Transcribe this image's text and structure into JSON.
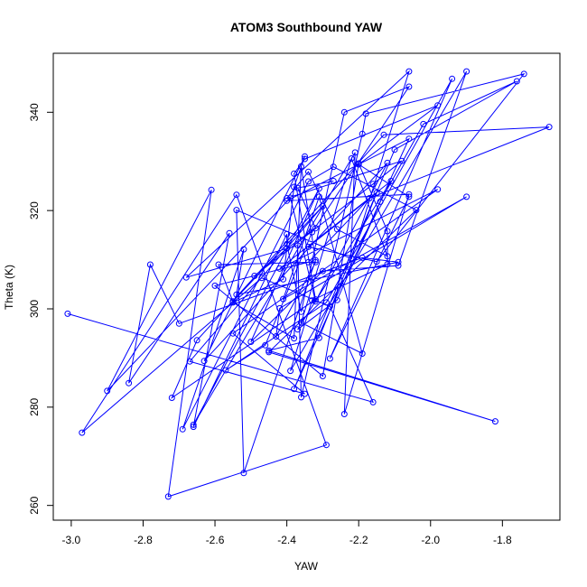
{
  "chart_data": {
    "type": "scatter",
    "title": "ATOM3 Southbound YAW",
    "xlabel": "YAW",
    "ylabel": "Theta (K)",
    "xlim": [
      -3.05,
      -1.64
    ],
    "ylim": [
      257,
      352
    ],
    "xticks": [
      -3.0,
      -2.8,
      -2.6,
      -2.4,
      -2.2,
      -2.0,
      -1.8
    ],
    "xtick_labels": [
      "-3.0",
      "-2.8",
      "-2.6",
      "-2.4",
      "-2.2",
      "-2.0",
      "-1.8"
    ],
    "yticks": [
      260,
      280,
      300,
      320,
      340
    ],
    "ytick_labels": [
      "260",
      "280",
      "300",
      "320",
      "340"
    ],
    "grid": false,
    "connected": true,
    "marker": "open-circle",
    "color": "#0000ff",
    "series": [
      {
        "points": [
          [
            -3.01,
            299.0
          ],
          [
            -2.16,
            281.0
          ],
          [
            -2.28,
            300.5
          ],
          [
            -2.47,
            306.3
          ],
          [
            -2.97,
            274.8
          ],
          [
            -2.54,
            323.2
          ],
          [
            -2.29,
            272.3
          ],
          [
            -2.73,
            261.8
          ],
          [
            -2.61,
            324.2
          ],
          [
            -2.9,
            283.3
          ],
          [
            -2.39,
            322.6
          ],
          [
            -2.32,
            301.5
          ],
          [
            -2.12,
            329.7
          ],
          [
            -2.63,
            289.4
          ],
          [
            -2.35,
            331.0
          ],
          [
            -2.38,
            324.8
          ],
          [
            -2.41,
            306.0
          ],
          [
            -2.55,
            301.3
          ],
          [
            -2.38,
            294.0
          ],
          [
            -2.36,
            329.0
          ],
          [
            -2.32,
            309.9
          ],
          [
            -2.52,
            266.6
          ],
          [
            -2.54,
            320.1
          ],
          [
            -2.22,
            310.2
          ],
          [
            -2.06,
            348.3
          ],
          [
            -2.68,
            306.4
          ],
          [
            -2.37,
            312.9
          ],
          [
            -2.36,
            282.0
          ],
          [
            -2.19,
            335.6
          ],
          [
            -2.18,
            339.7
          ],
          [
            -1.74,
            347.8
          ],
          [
            -2.15,
            309.6
          ],
          [
            -2.34,
            312.6
          ],
          [
            -2.15,
            323.6
          ],
          [
            -2.31,
            294.1
          ],
          [
            -2.45,
            291.5
          ],
          [
            -1.82,
            277.1
          ],
          [
            -2.45,
            291.2
          ],
          [
            -2.04,
            320.1
          ],
          [
            -2.27,
            328.9
          ],
          [
            -2.34,
            325.9
          ],
          [
            -2.69,
            275.5
          ],
          [
            -2.52,
            312.1
          ],
          [
            -2.54,
            302.9
          ],
          [
            -2.09,
            309.5
          ],
          [
            -2.19,
            310.4
          ],
          [
            -2.7,
            297.0
          ],
          [
            -2.78,
            309.0
          ],
          [
            -2.84,
            284.9
          ],
          [
            -2.56,
            315.4
          ],
          [
            -2.66,
            276.0
          ],
          [
            -2.4,
            315.2
          ],
          [
            -2.4,
            313.2
          ],
          [
            -2.36,
            299.4
          ],
          [
            -2.24,
            340.0
          ],
          [
            -2.06,
            345.2
          ],
          [
            -2.33,
            315.6
          ],
          [
            -2.46,
            292.6
          ],
          [
            -2.57,
            287.5
          ],
          [
            -2.29,
            301.3
          ],
          [
            -1.94,
            346.8
          ],
          [
            -2.28,
            289.9
          ],
          [
            -2.06,
            322.8
          ],
          [
            -2.2,
            329.4
          ],
          [
            -1.98,
            341.4
          ],
          [
            -2.35,
            330.5
          ],
          [
            -2.38,
            327.5
          ],
          [
            -2.32,
            301.9
          ],
          [
            -2.72,
            281.9
          ],
          [
            -2.65,
            293.6
          ],
          [
            -2.13,
            335.4
          ],
          [
            -1.67,
            337.0
          ],
          [
            -2.17,
            322.5
          ],
          [
            -2.34,
            309.5
          ],
          [
            -2.6,
            304.7
          ],
          [
            -2.3,
            286.3
          ],
          [
            -2.2,
            329.6
          ],
          [
            -2.12,
            315.8
          ],
          [
            -2.12,
            309.1
          ],
          [
            -2.33,
            301.7
          ],
          [
            -2.39,
            287.4
          ],
          [
            -1.9,
            348.3
          ],
          [
            -2.09,
            308.8
          ],
          [
            -2.3,
            307.7
          ],
          [
            -2.5,
            293.3
          ],
          [
            -2.31,
            324.5
          ],
          [
            -2.66,
            276.4
          ],
          [
            -2.21,
            331.8
          ],
          [
            -2.24,
            278.6
          ],
          [
            -2.06,
            323.3
          ],
          [
            -2.4,
            322.0
          ],
          [
            -2.06,
            334.6
          ],
          [
            -2.38,
            283.7
          ],
          [
            -2.1,
            332.4
          ],
          [
            -1.76,
            346.3
          ],
          [
            -2.02,
            337.6
          ],
          [
            -2.14,
            321.8
          ],
          [
            -2.26,
            301.8
          ],
          [
            -2.37,
            295.8
          ],
          [
            -2.11,
            326.0
          ],
          [
            -2.42,
            308.2
          ],
          [
            -1.98,
            324.3
          ],
          [
            -2.55,
            295.0
          ],
          [
            -2.35,
            282.7
          ],
          [
            -2.67,
            289.3
          ],
          [
            -2.3,
            320.9
          ],
          [
            -2.55,
            301.5
          ],
          [
            -2.59,
            309.0
          ],
          [
            -2.32,
            309.5
          ],
          [
            -2.43,
            294.4
          ],
          [
            -2.42,
            300.1
          ],
          [
            -1.9,
            322.8
          ],
          [
            -2.41,
            302.0
          ],
          [
            -2.31,
            322.8
          ],
          [
            -2.19,
            290.9
          ],
          [
            -2.36,
            297.2
          ],
          [
            -2.22,
            330.6
          ],
          [
            -2.12,
            310.7
          ],
          [
            -2.26,
            316.2
          ],
          [
            -2.34,
            327.9
          ],
          [
            -2.4,
            322.5
          ],
          [
            -2.08,
            330.1
          ],
          [
            -2.16,
            325.4
          ],
          [
            -2.49,
            306.7
          ],
          [
            -2.4,
            312.3
          ],
          [
            -2.32,
            316.4
          ],
          [
            -2.37,
            324.6
          ],
          [
            -2.27,
            326.0
          ]
        ]
      }
    ]
  }
}
